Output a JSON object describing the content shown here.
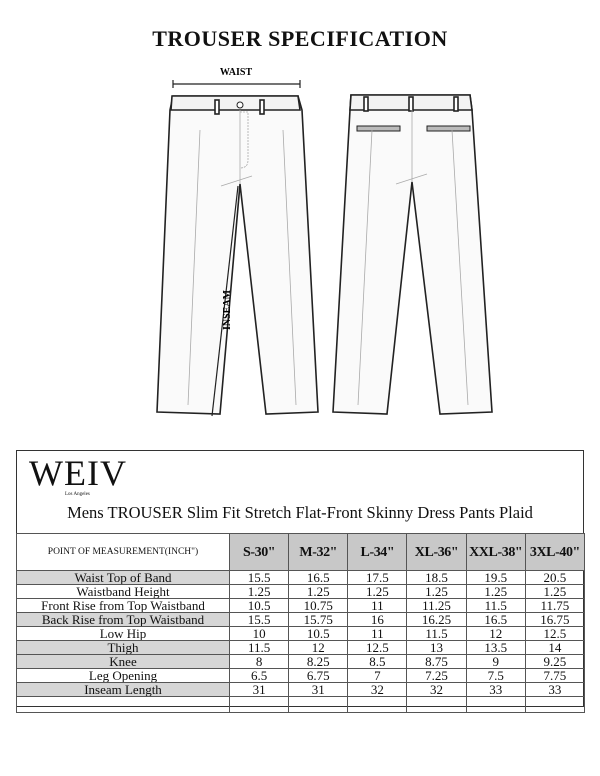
{
  "title": "TROUSER SPECIFICATION",
  "diagram": {
    "waist_label": "WAIST",
    "inseam_label": "INSEAM"
  },
  "brand": {
    "logo": "WEIV",
    "tagline": "Los Angeles"
  },
  "product_title": "Mens TROUSER Slim Fit Stretch Flat-Front Skinny Dress Pants Plaid",
  "table": {
    "header": "POINT OF MEASUREMENT(INCH\")",
    "sizes": [
      "S-30\"",
      "M-32\"",
      "L-34\"",
      "XL-36\"",
      "XXL-38\"",
      "3XL-40\""
    ],
    "rows": [
      {
        "label": "Waist Top of Band",
        "values": [
          "15.5",
          "16.5",
          "17.5",
          "18.5",
          "19.5",
          "20.5"
        ],
        "shaded": true
      },
      {
        "label": "Waistband Height",
        "values": [
          "1.25",
          "1.25",
          "1.25",
          "1.25",
          "1.25",
          "1.25"
        ],
        "shaded": false
      },
      {
        "label": "Front Rise from Top Waistband",
        "values": [
          "10.5",
          "10.75",
          "11",
          "11.25",
          "11.5",
          "11.75"
        ],
        "shaded": false
      },
      {
        "label": "Back Rise from Top Waistband",
        "values": [
          "15.5",
          "15.75",
          "16",
          "16.25",
          "16.5",
          "16.75"
        ],
        "shaded": true
      },
      {
        "label": "Low Hip",
        "values": [
          "10",
          "10.5",
          "11",
          "11.5",
          "12",
          "12.5"
        ],
        "shaded": false
      },
      {
        "label": "Thigh",
        "values": [
          "11.5",
          "12",
          "12.5",
          "13",
          "13.5",
          "14"
        ],
        "shaded": true
      },
      {
        "label": "Knee",
        "values": [
          "8",
          "8.25",
          "8.5",
          "8.75",
          "9",
          "9.25"
        ],
        "shaded": true
      },
      {
        "label": "Leg Opening",
        "values": [
          "6.5",
          "6.75",
          "7",
          "7.25",
          "7.5",
          "7.75"
        ],
        "shaded": false
      },
      {
        "label": "Inseam Length",
        "values": [
          "31",
          "31",
          "32",
          "32",
          "33",
          "33"
        ],
        "shaded": true
      }
    ]
  }
}
